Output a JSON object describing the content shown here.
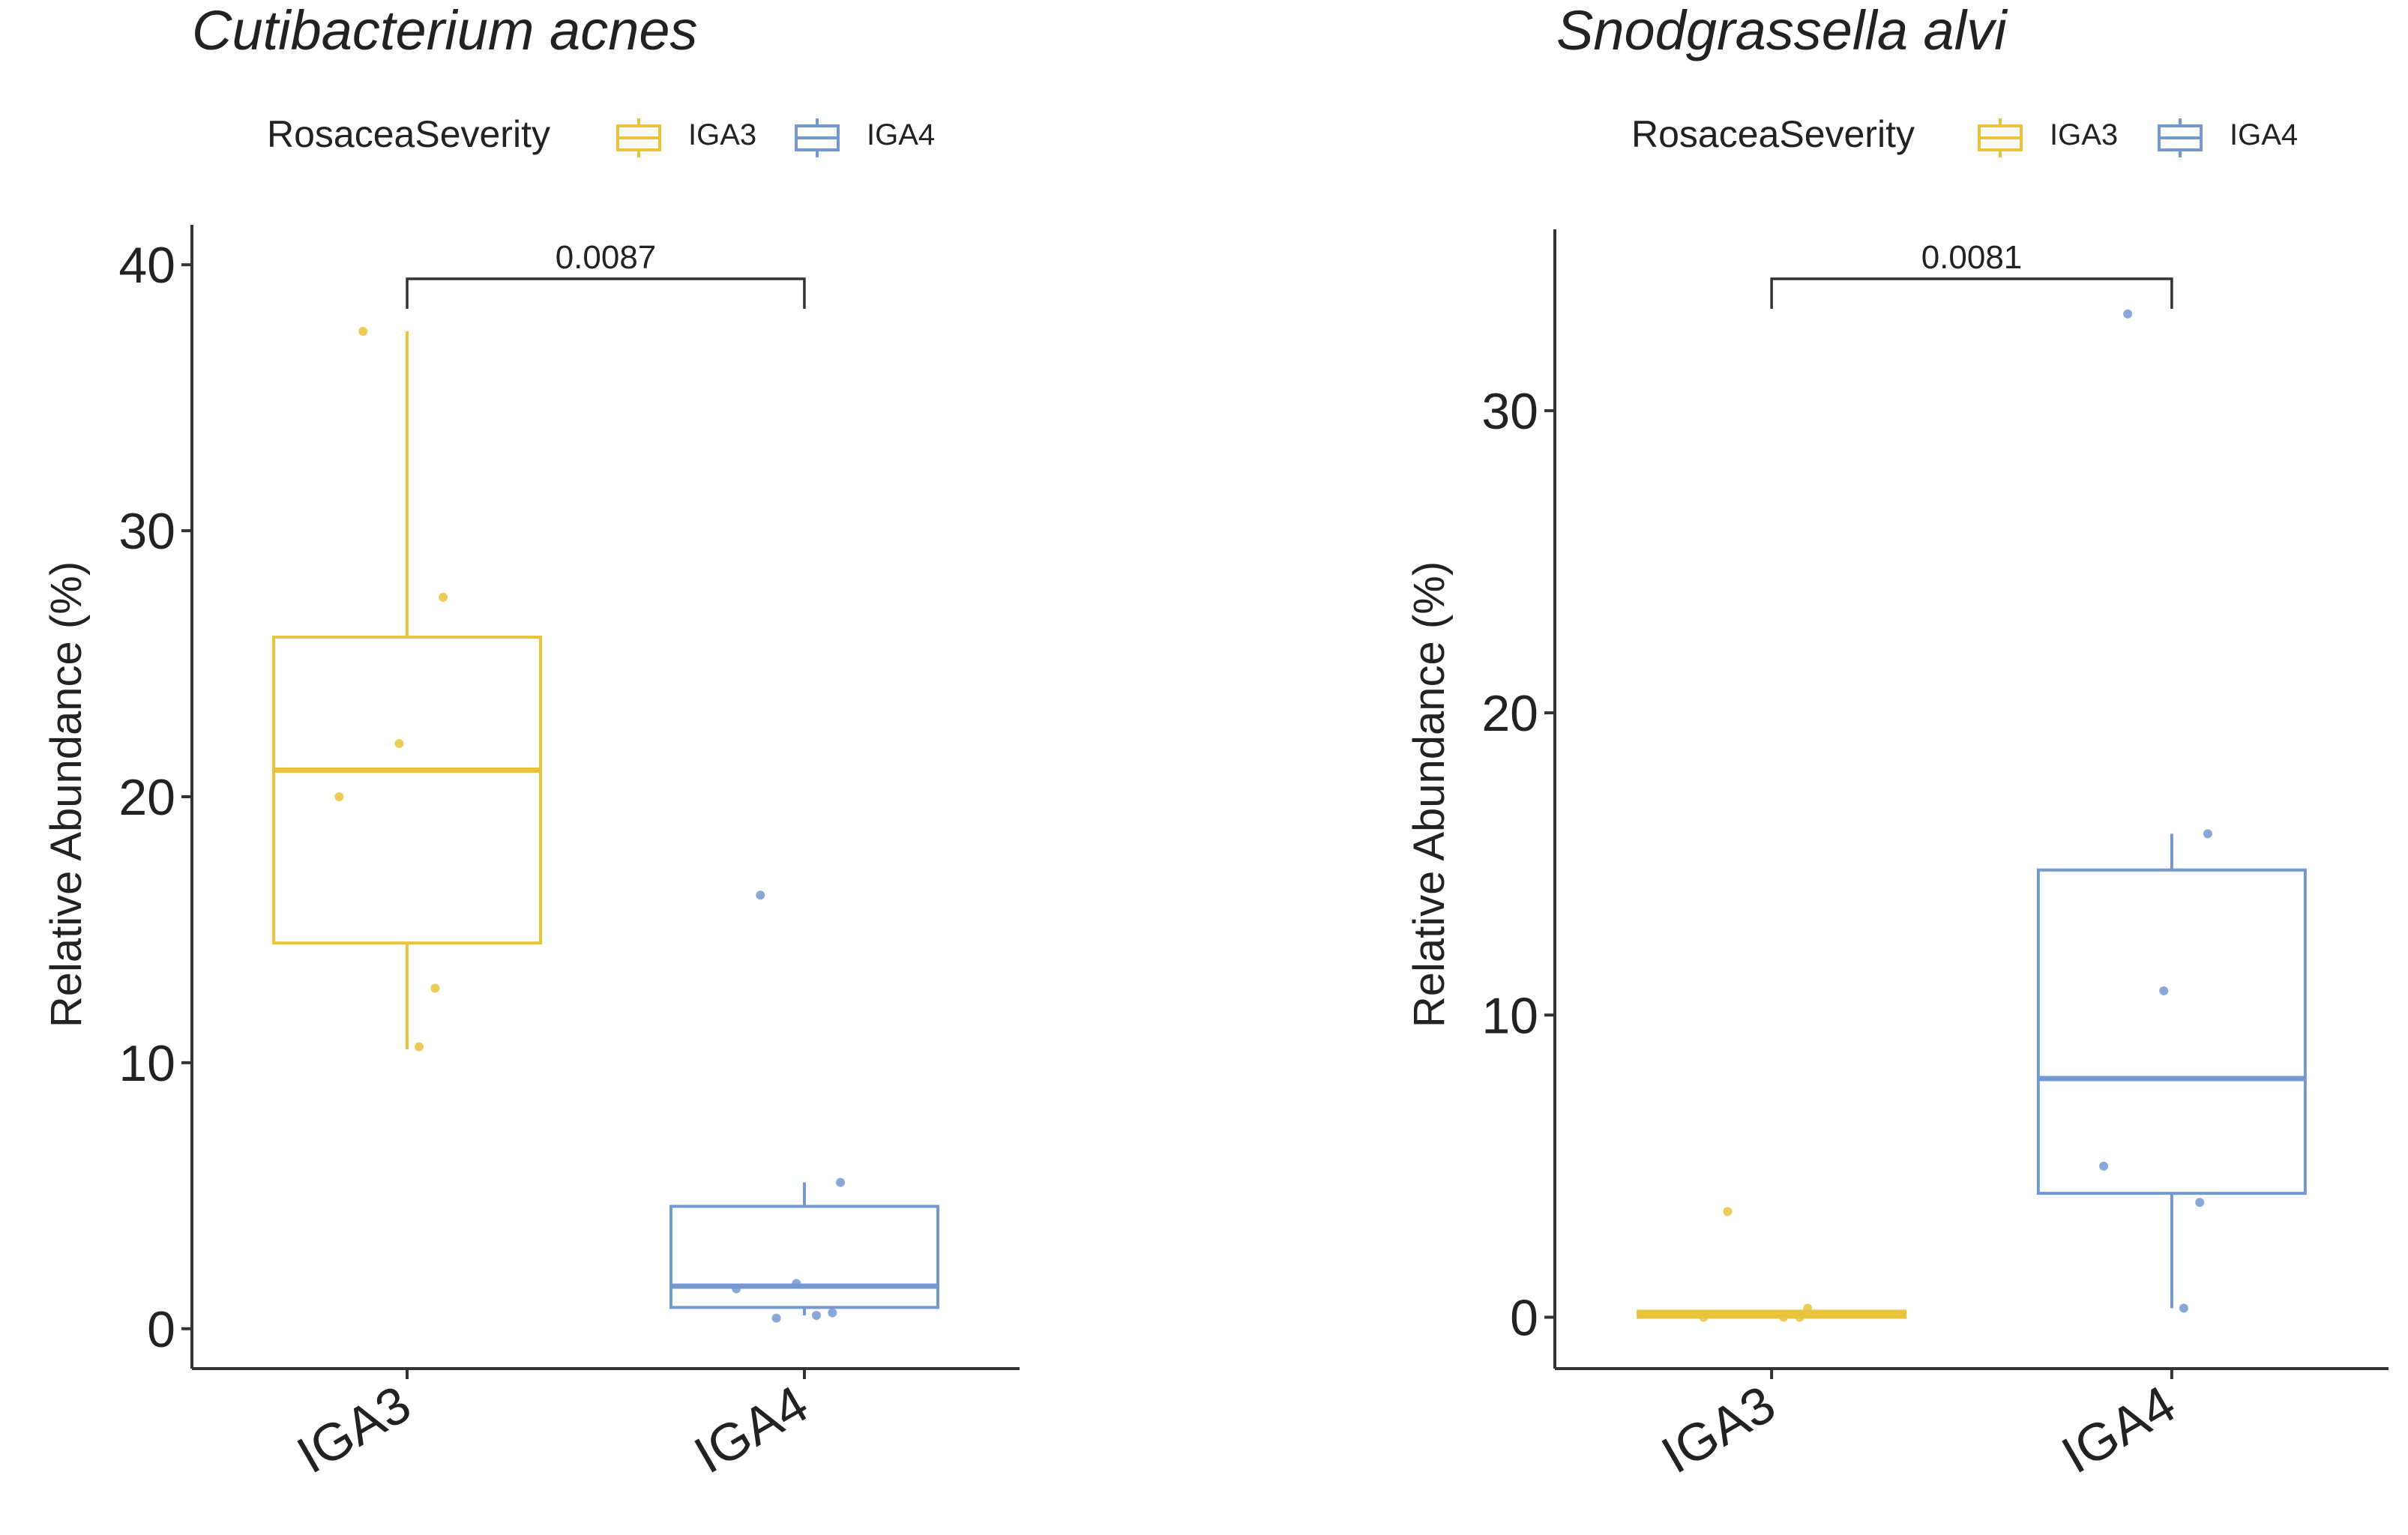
{
  "chart_data": [
    {
      "type": "box",
      "title": "Cutibacterium acnes",
      "xlabel": "",
      "ylabel": "Relative Abundance (%)",
      "ylim": [
        -1.5,
        41.5
      ],
      "yticks": [
        0,
        10,
        20,
        30,
        40
      ],
      "categories": [
        "IGA3",
        "IGA4"
      ],
      "legend": {
        "title": "RosaceaSeverity",
        "entries": [
          "IGA3",
          "IGA4"
        ],
        "placement": "top"
      },
      "series": [
        {
          "name": "IGA3",
          "color": "#E8C33C",
          "box": {
            "min": 10.5,
            "q1": 14.5,
            "median": 21.0,
            "q3": 26.0,
            "max": 37.5
          },
          "points": [
            37.5,
            27.5,
            22.0,
            20.0,
            12.8,
            10.6
          ]
        },
        {
          "name": "IGA4",
          "color": "#7499D1",
          "box": {
            "min": 0.5,
            "q1": 0.8,
            "median": 1.6,
            "q3": 4.6,
            "max": 5.5
          },
          "points": [
            16.3,
            5.5,
            1.7,
            1.5,
            0.6,
            0.5,
            0.4
          ]
        }
      ],
      "comparison": {
        "groups": [
          "IGA3",
          "IGA4"
        ],
        "p_value": "0.0087"
      }
    },
    {
      "type": "box",
      "title": "Snodgrassella alvi",
      "xlabel": "",
      "ylabel": "Relative Abundance (%)",
      "ylim": [
        -1.7,
        36
      ],
      "yticks": [
        0,
        10,
        20,
        30
      ],
      "categories": [
        "IGA3",
        "IGA4"
      ],
      "legend": {
        "title": "RosaceaSeverity",
        "entries": [
          "IGA3",
          "IGA4"
        ],
        "placement": "top"
      },
      "series": [
        {
          "name": "IGA3",
          "color": "#E8C33C",
          "box": {
            "min": 0.0,
            "q1": 0.0,
            "median": 0.1,
            "q3": 0.2,
            "max": 0.2
          },
          "points": [
            3.5,
            0.3,
            0.1,
            0.0,
            0.0,
            0.0
          ]
        },
        {
          "name": "IGA4",
          "color": "#7499D1",
          "box": {
            "min": 0.3,
            "q1": 4.1,
            "median": 7.9,
            "q3": 14.8,
            "max": 16.0
          },
          "points": [
            33.2,
            16.0,
            10.8,
            5.0,
            3.8,
            0.3
          ]
        }
      ],
      "comparison": {
        "groups": [
          "IGA3",
          "IGA4"
        ],
        "p_value": "0.0081"
      }
    }
  ]
}
